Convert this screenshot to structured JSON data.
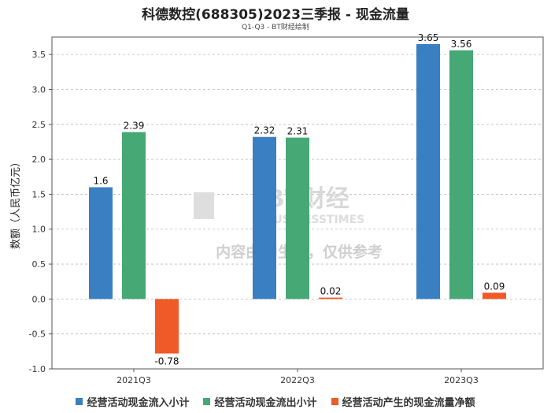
{
  "chart_data": {
    "type": "bar",
    "title": "科德数控(688305)2023三季报 - 现金流量",
    "subtitle": "Q1-Q3 - BT财经绘制",
    "ylabel": "数额（人民币亿元）",
    "xlabel": "",
    "categories": [
      "2021Q3",
      "2022Q3",
      "2023Q3"
    ],
    "ylim": [
      -1.0,
      3.75
    ],
    "yticks": [
      "-1.0",
      "-0.5",
      "0.0",
      "0.5",
      "1.0",
      "1.5",
      "2.0",
      "2.5",
      "3.0",
      "3.5"
    ],
    "grid": true,
    "legend_position": "bottom",
    "series": [
      {
        "name": "经营活动现金流入小计",
        "color": "#3a7fc1",
        "values": [
          1.6,
          2.32,
          3.65
        ],
        "labels": [
          "1.6",
          "2.32",
          "3.65"
        ]
      },
      {
        "name": "经营活动现金流出小计",
        "color": "#46a875",
        "values": [
          2.39,
          2.31,
          3.56
        ],
        "labels": [
          "2.39",
          "2.31",
          "3.56"
        ]
      },
      {
        "name": "经营活动产生的现金流量净额",
        "color": "#f05a28",
        "values": [
          -0.78,
          0.02,
          0.09
        ],
        "labels": [
          "-0.78",
          "0.02",
          "0.09"
        ]
      }
    ],
    "watermark": {
      "logo_text": "BT财经",
      "logo_sub": "BUSINESSTIMES",
      "notice": "内容由AI生成，仅供参考"
    }
  }
}
